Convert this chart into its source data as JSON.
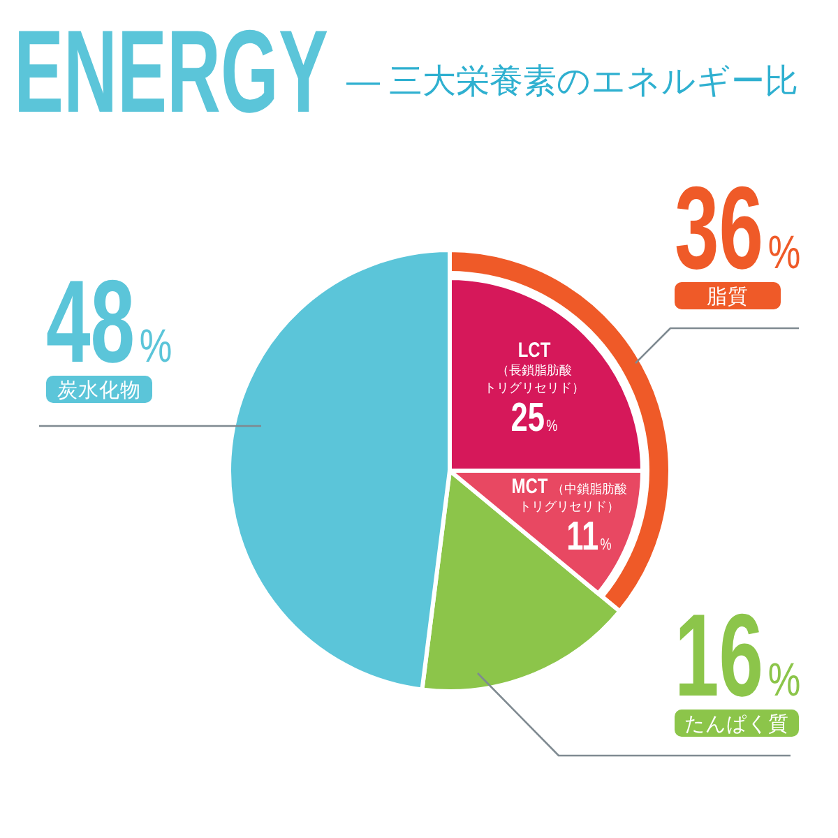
{
  "chart_data": [
    {
      "type": "pie",
      "title": "ENERGY",
      "subtitle": "— 三大栄養素のエネルギー比",
      "categories": [
        "脂質",
        "たんぱく質",
        "炭水化物"
      ],
      "values": [
        36,
        16,
        48
      ],
      "colors": [
        "#ef5a28",
        "#8cc54a",
        "#5bc5d9"
      ],
      "value_labels": [
        "36%",
        "16%",
        "48%"
      ]
    },
    {
      "type": "pie",
      "categories": [
        "LCT（長鎖脂肪酸トリグリセリド）",
        "MCT（中鎖脂肪酸トリグリセリド）"
      ],
      "values": [
        25,
        11
      ],
      "colors": [
        "#d6185a",
        "#e84862"
      ],
      "value_labels": [
        "25%",
        "11%"
      ]
    }
  ]
}
